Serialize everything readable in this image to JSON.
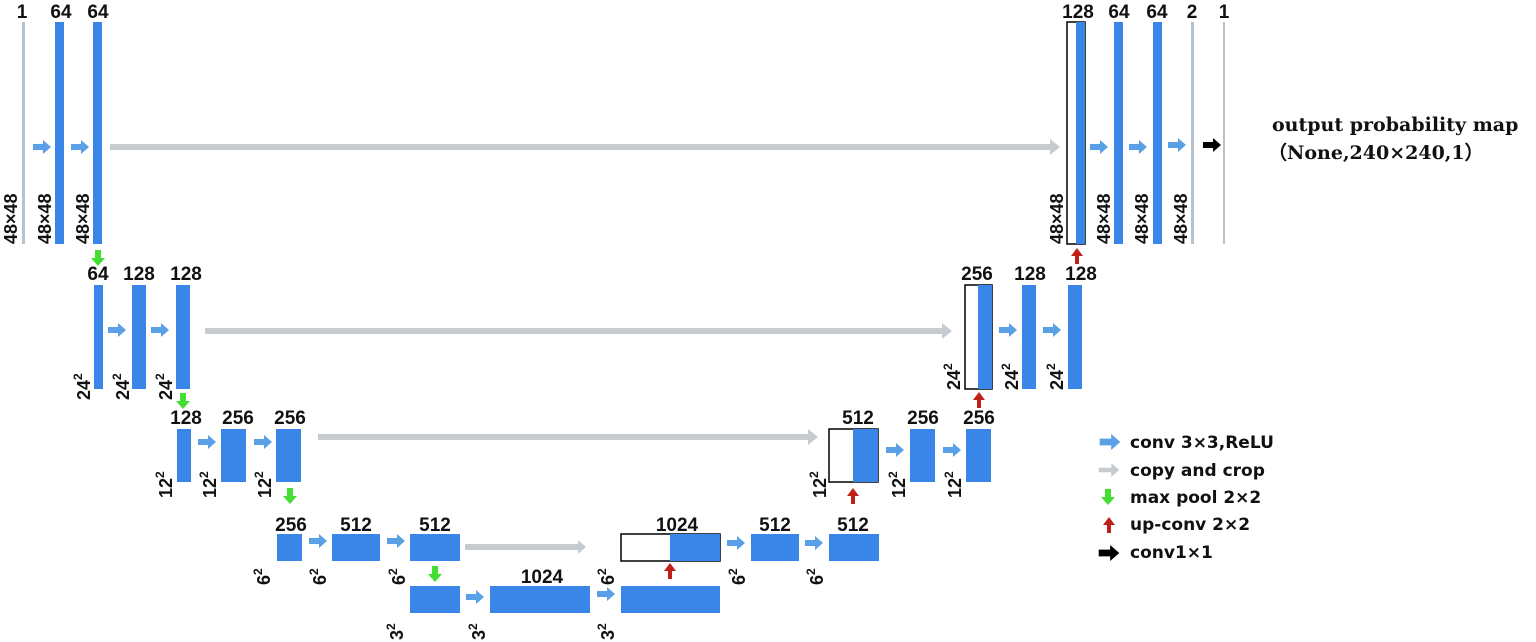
{
  "colors": {
    "feature_map": "#3a86e8",
    "conv_arrow": "#5aa0e6",
    "copy_arrow": "#c6cbd0",
    "pool_arrow": "#44dd33",
    "upconv_arrow": "#c0201a",
    "conv1x1_arrow": "#000000"
  },
  "channels": {
    "l1": [
      "1",
      "64",
      "64"
    ],
    "r1": [
      "128",
      "64",
      "64",
      "2",
      "1"
    ],
    "l2": [
      "64",
      "128",
      "128"
    ],
    "r2": [
      "256",
      "128",
      "128"
    ],
    "l3": [
      "128",
      "256",
      "256"
    ],
    "r3": [
      "512",
      "256",
      "256"
    ],
    "l4": [
      "256",
      "512",
      "512"
    ],
    "r4": [
      "1024",
      "512",
      "512"
    ],
    "bottom": "1024"
  },
  "sizes": {
    "l1": "48×48",
    "l2_base": "24",
    "l3_base": "12",
    "l4_base": "6",
    "l5_base": "3",
    "sq": "2"
  },
  "output": {
    "title": "output probability map",
    "shape": "（None,240×240,1）"
  },
  "legend": [
    {
      "icon": "conv-arrow",
      "label": "conv 3×3,ReLU"
    },
    {
      "icon": "copy-arrow",
      "label": "copy and crop"
    },
    {
      "icon": "pool-arrow",
      "label": "max pool 2×2"
    },
    {
      "icon": "upconv-arrow",
      "label": "up-conv 2×2"
    },
    {
      "icon": "conv1x1-arrow",
      "label": "conv1×1"
    }
  ]
}
